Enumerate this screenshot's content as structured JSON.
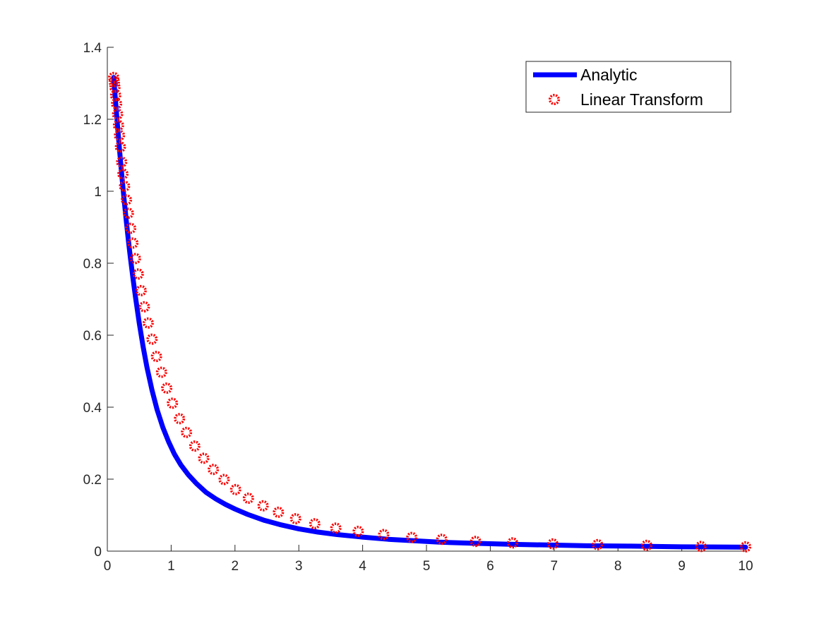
{
  "chart_data": {
    "type": "line",
    "title": "",
    "xlabel": "",
    "ylabel": "",
    "xlim": [
      0,
      10
    ],
    "ylim": [
      0,
      1.4
    ],
    "xticks": [
      0,
      1,
      2,
      3,
      4,
      5,
      6,
      7,
      8,
      9,
      10
    ],
    "xtick_labels": [
      "0",
      "1",
      "2",
      "3",
      "4",
      "5",
      "6",
      "7",
      "8",
      "9",
      "10"
    ],
    "yticks": [
      0,
      0.2,
      0.4,
      0.6,
      0.8,
      1.0,
      1.2,
      1.4
    ],
    "ytick_labels": [
      "0",
      "0.2",
      "0.4",
      "0.6",
      "0.8",
      "1",
      "1.2",
      "1.4"
    ],
    "grid": false,
    "legend_position": "top-right",
    "series": [
      {
        "name": "Analytic",
        "style": "line",
        "color": "#0000ff",
        "x": [
          0.1,
          0.11,
          0.12,
          0.13,
          0.14,
          0.15,
          0.16,
          0.17,
          0.18,
          0.19,
          0.2,
          0.22,
          0.24,
          0.26,
          0.28,
          0.3,
          0.33,
          0.36,
          0.4,
          0.44,
          0.5,
          0.56,
          0.62,
          0.7,
          0.78,
          0.87,
          0.96,
          1.05,
          1.15,
          1.27,
          1.4,
          1.55,
          1.7,
          1.85,
          2.0,
          2.2,
          2.45,
          2.7,
          3.0,
          3.3,
          3.6,
          4.0,
          4.4,
          4.8,
          5.2,
          5.7,
          6.3,
          6.9,
          7.5,
          8.2,
          9.0,
          10.0
        ],
        "y": [
          1.316,
          1.293,
          1.27,
          1.247,
          1.224,
          1.202,
          1.18,
          1.159,
          1.138,
          1.117,
          1.097,
          1.057,
          1.019,
          0.982,
          0.947,
          0.913,
          0.864,
          0.818,
          0.76,
          0.707,
          0.634,
          0.569,
          0.512,
          0.447,
          0.393,
          0.344,
          0.304,
          0.27,
          0.24,
          0.212,
          0.187,
          0.163,
          0.145,
          0.13,
          0.117,
          0.102,
          0.086,
          0.074,
          0.062,
          0.053,
          0.046,
          0.039,
          0.033,
          0.029,
          0.025,
          0.022,
          0.019,
          0.017,
          0.015,
          0.014,
          0.012,
          0.011
        ]
      },
      {
        "name": "Linear Transform",
        "style": "markers",
        "marker": "circle",
        "color": "#ff0000",
        "x": [
          0.1,
          0.11,
          0.12,
          0.13,
          0.145,
          0.16,
          0.175,
          0.19,
          0.205,
          0.225,
          0.245,
          0.27,
          0.3,
          0.33,
          0.365,
          0.4,
          0.44,
          0.485,
          0.53,
          0.58,
          0.64,
          0.7,
          0.77,
          0.85,
          0.93,
          1.02,
          1.13,
          1.24,
          1.37,
          1.51,
          1.66,
          1.83,
          2.01,
          2.21,
          2.44,
          2.68,
          2.95,
          3.25,
          3.58,
          3.93,
          4.33,
          4.77,
          5.24,
          5.77,
          6.35,
          6.98,
          7.68,
          8.45,
          9.3,
          10.0
        ],
        "y": [
          1.316,
          1.304,
          1.289,
          1.266,
          1.243,
          1.214,
          1.183,
          1.155,
          1.123,
          1.081,
          1.048,
          1.014,
          0.976,
          0.939,
          0.897,
          0.856,
          0.813,
          0.77,
          0.724,
          0.679,
          0.634,
          0.589,
          0.541,
          0.497,
          0.453,
          0.411,
          0.368,
          0.33,
          0.292,
          0.258,
          0.227,
          0.199,
          0.171,
          0.147,
          0.126,
          0.108,
          0.09,
          0.076,
          0.064,
          0.055,
          0.046,
          0.038,
          0.033,
          0.027,
          0.023,
          0.02,
          0.018,
          0.016,
          0.013,
          0.012
        ]
      }
    ]
  }
}
